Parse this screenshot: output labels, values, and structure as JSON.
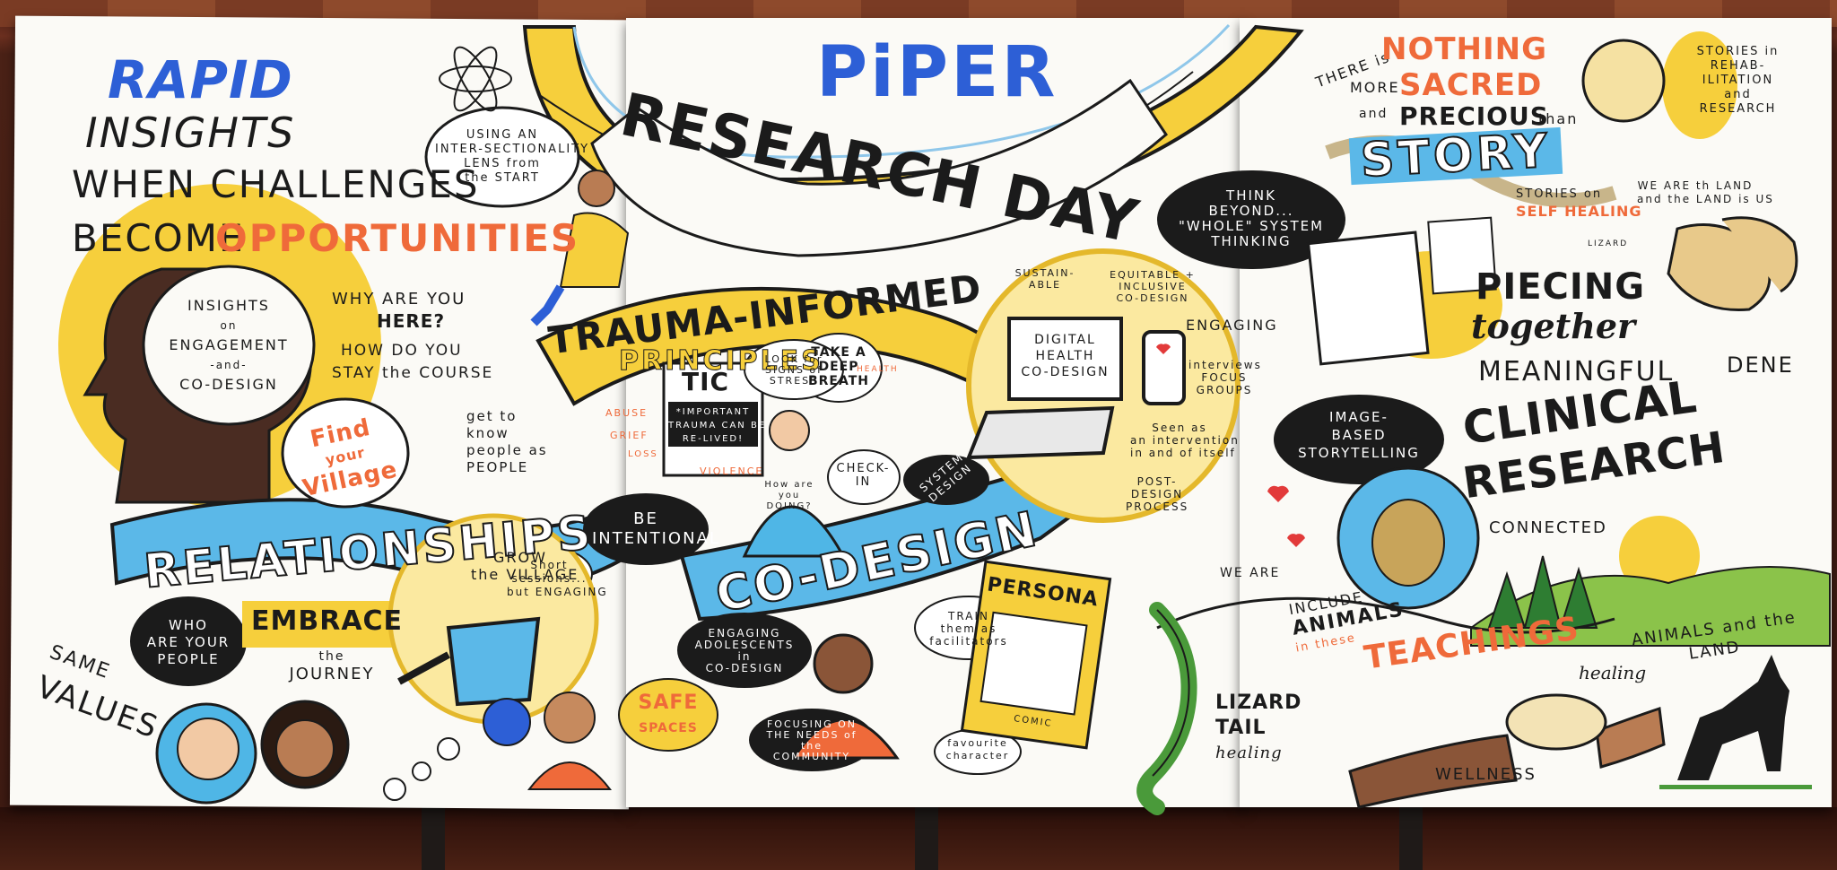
{
  "title": {
    "brand": "PiPER",
    "event": "RESEARCH DAY"
  },
  "left_panel": {
    "rapid": "RAPID",
    "insights": "INSIGHTS",
    "when_challenges": "WHEN CHALLENGES",
    "become": "BECOME",
    "opportunities": "OPPORTUNITIES",
    "head_text": [
      "INSIGHTS",
      "on",
      "ENGAGEMENT",
      "-and-",
      "CO-DESIGN"
    ],
    "why_are_you": "WHY ARE YOU",
    "here": "HERE?",
    "how_do_you": "HOW DO YOU",
    "stay_course": "STAY the COURSE",
    "find_your_village": [
      "Find",
      "your",
      "Village"
    ],
    "get_to_know": [
      "get to",
      "know",
      "people as",
      "PEOPLE"
    ],
    "relationships": "RELATIONSHIPS",
    "who_are_your_people": [
      "WHO",
      "ARE YOUR",
      "PEOPLE"
    ],
    "embrace": "EMBRACE",
    "the_journey": [
      "the",
      "JOURNEY"
    ],
    "same_values": [
      "SAME",
      "VALUES"
    ],
    "grow_the_village": [
      "GROW",
      "the VILLAGE"
    ],
    "short_sessions": [
      "Short",
      "sessions...",
      "but ENGAGING"
    ]
  },
  "middle_panel": {
    "intersectionality": [
      "USING AN",
      "INTER-SECTIONALITY",
      "LENS from",
      "the START"
    ],
    "trauma_informed": "TRAUMA-INFORMED",
    "principles": "PRINCIPLES",
    "tic": "TIC",
    "tic_note": [
      "*IMPORTANT",
      "TRAUMA CAN BE",
      "RE-LIVED!"
    ],
    "look_for_stress": [
      "LOOK for",
      "SIGNS of",
      "STRESS"
    ],
    "deep_breath": [
      "TAKE A",
      "DEEP",
      "BREATH"
    ],
    "check_in": [
      "CHECK-",
      "IN"
    ],
    "how_are_you_doing": [
      "How are",
      "you",
      "DOING?"
    ],
    "topics": [
      "ABUSE",
      "GRIEF",
      "LOSS",
      "VIOLENCE",
      "HEALTH"
    ],
    "be_intentional": [
      "BE",
      "INTENTIONAL"
    ],
    "co_design": "CO-DESIGN",
    "safe_spaces": [
      "SAFE",
      "SPACES"
    ],
    "engaging_adolescents": [
      "ENGAGING",
      "ADOLESCENTS",
      "in",
      "CO-DESIGN"
    ],
    "focusing_needs": [
      "FOCUSING ON",
      "THE NEEDS of",
      "the",
      "COMMUNITY"
    ],
    "train_facilitators": [
      "TRAIN",
      "them as",
      "facilitators"
    ],
    "persona": "PERSONA",
    "comic": "COMIC",
    "favourite_character": [
      "favourite",
      "character"
    ],
    "think_beyond": [
      "THINK",
      "BEYOND...",
      "\"WHOLE\" SYSTEM",
      "THINKING"
    ],
    "sustainable": [
      "SUSTAIN-",
      "ABLE"
    ],
    "equitable": [
      "EQUITABLE +",
      "INCLUSIVE",
      "CO-DESIGN"
    ],
    "digital_health": [
      "DIGITAL",
      "HEALTH",
      "CO-DESIGN"
    ],
    "engaging": "ENGAGING",
    "interviews": [
      "interviews",
      "FOCUS",
      "GROUPS"
    ],
    "system_design": [
      "SYSTEM",
      "DESIGN"
    ],
    "seen_as_intervention": [
      "Seen as",
      "an intervention",
      "in and of itself"
    ],
    "post_design": [
      "POST-",
      "DESIGN",
      "PROCESS"
    ]
  },
  "right_panel": {
    "nothing_sacred": [
      "THERE is",
      "NOTHING",
      "MORE",
      "SACRED",
      "and",
      "PRECIOUS",
      "than"
    ],
    "story": "STORY",
    "stories_rehab": [
      "STORIES in",
      "REHAB-",
      "ILITATION",
      "and",
      "RESEARCH"
    ],
    "stories_self_healing": [
      "STORIES on",
      "SELF HEALING"
    ],
    "we_are_the_land": [
      "WE ARE th LAND",
      "and the LAND is US"
    ],
    "lizard_small": "LIZARD",
    "piecing": "PIECING",
    "together": "together",
    "meaningful": "MEANINGFUL",
    "clinical": "CLINICAL",
    "research": "RESEARCH",
    "dene": "DENE",
    "image_based": [
      "IMAGE-",
      "BASED",
      "STORYTELLING"
    ],
    "connected": "CONNECTED",
    "we_are": "WE ARE",
    "include_animals": [
      "INCLUDE",
      "ANIMALS",
      "in these"
    ],
    "teachings": "TEACHINGS",
    "animals_land": [
      "ANIMALS and the",
      "LAND"
    ],
    "lizard_tail": [
      "LIZARD",
      "TAIL",
      "healing"
    ],
    "healing": "healing",
    "wellness": "WELLNESS"
  },
  "colors": {
    "yellow": "#f6cf3c",
    "orange": "#ef6a3a",
    "blue": "#2d5fd6",
    "sky": "#4fb6e6",
    "ink": "#1b1b1b",
    "green": "#4a9a3a"
  }
}
